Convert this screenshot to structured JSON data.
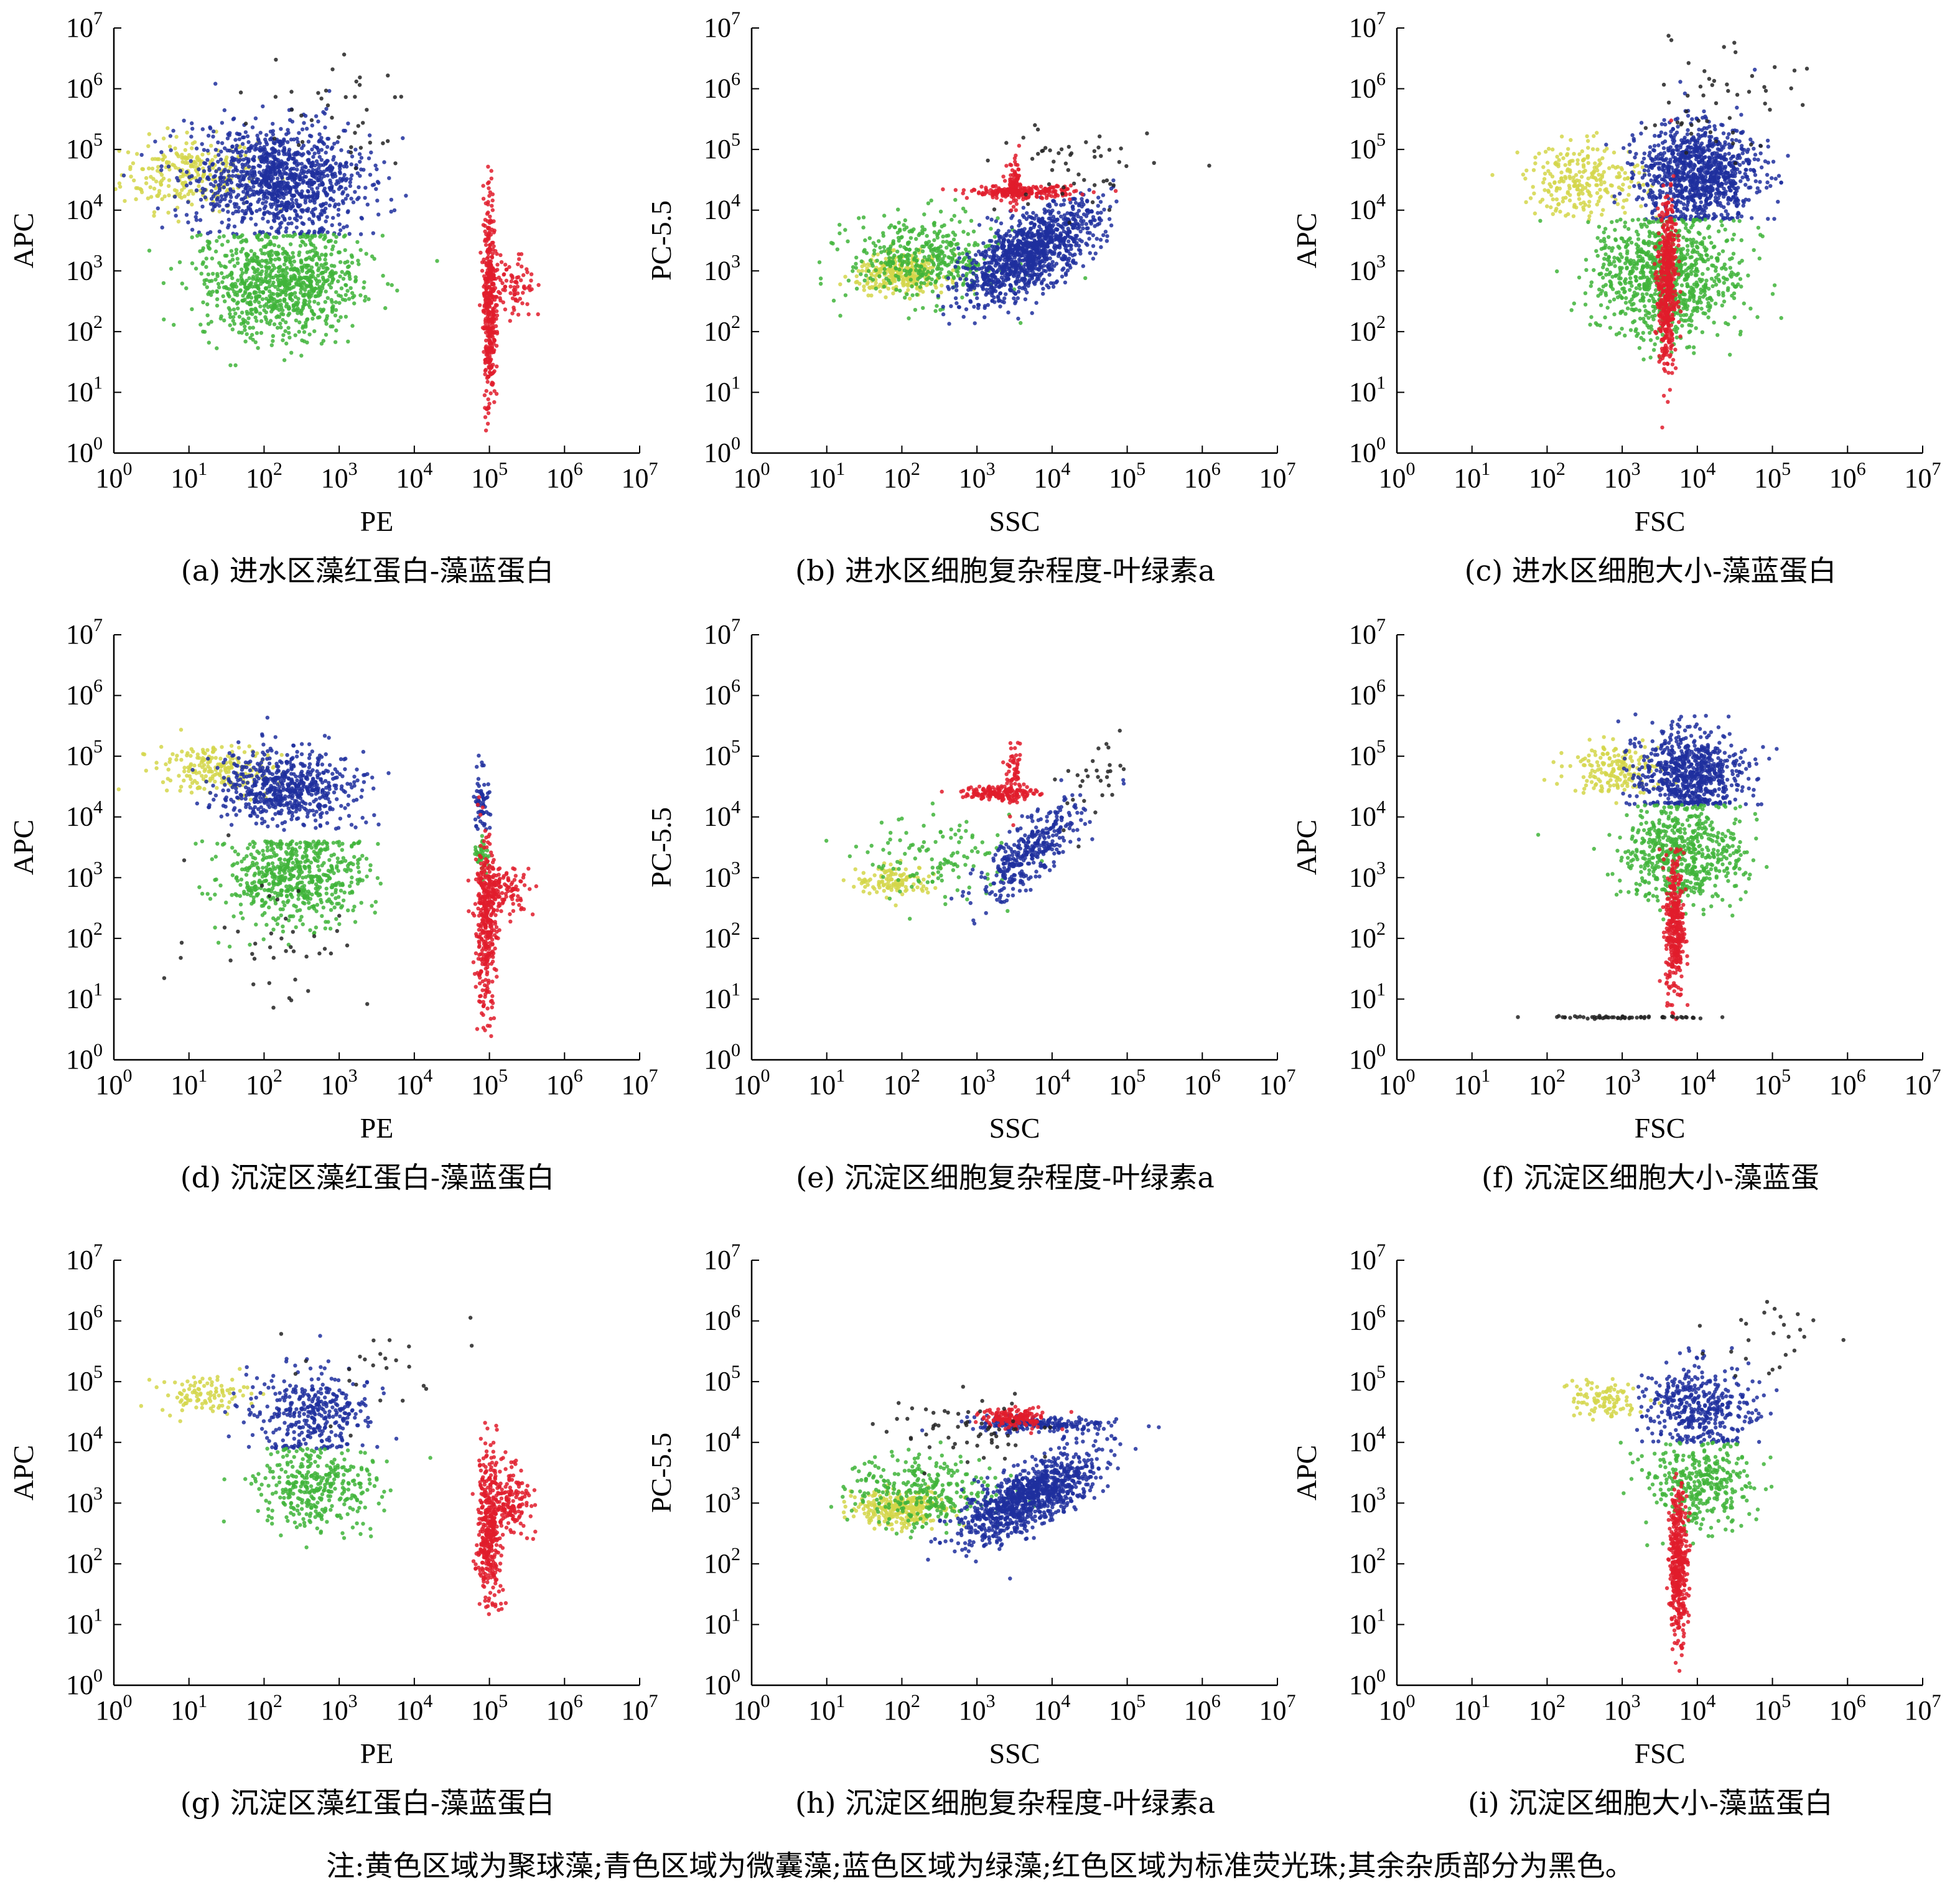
{
  "figure": {
    "note": "注:黄色区域为聚球藻;青色区域为微囊藻;蓝色区域为绿藻;红色区域为标准荧光珠;其余杂质部分为黑色。",
    "colors": {
      "yellow": "#d4d64a",
      "green": "#3fb43a",
      "blue": "#1f2f9e",
      "red": "#e01c2c",
      "black": "#222222"
    }
  },
  "chart_data": [
    {
      "type": "scatter",
      "caption": "(a) 进水区藻红蛋白-藻蓝蛋白",
      "xlabel": "PE",
      "ylabel": "APC",
      "xscale": "log",
      "yscale": "log",
      "xlim": [
        1,
        10000000
      ],
      "ylim": [
        1,
        10000000
      ],
      "tick_labels": [
        "10^0",
        "10^1",
        "10^2",
        "10^3",
        "10^4",
        "10^5",
        "10^6",
        "10^7"
      ],
      "clusters": [
        {
          "color": "yellow",
          "cx": 1.0,
          "cy": 4.6,
          "sx": 0.45,
          "sy": 0.3,
          "n": 250
        },
        {
          "color": "blue",
          "cx": 2.2,
          "cy": 4.5,
          "sx": 0.55,
          "sy": 0.45,
          "n": 1100,
          "ymin": 3.6
        },
        {
          "color": "green",
          "cx": 2.2,
          "cy": 2.8,
          "sx": 0.55,
          "sy": 0.45,
          "n": 900,
          "ymax": 3.6
        },
        {
          "color": "black",
          "cx": 2.8,
          "cy": 5.6,
          "sx": 0.6,
          "sy": 0.5,
          "n": 40
        },
        {
          "color": "red",
          "cx": 5.0,
          "cy": 2.5,
          "sx": 0.04,
          "sy": 0.9,
          "n": 380
        },
        {
          "color": "red",
          "cx": 5.3,
          "cy": 2.7,
          "sx": 0.15,
          "sy": 0.3,
          "n": 90
        }
      ]
    },
    {
      "type": "scatter",
      "caption": "(b) 进水区细胞复杂程度-叶绿素a",
      "xlabel": "SSC",
      "ylabel": "PC-5.5",
      "xscale": "log",
      "yscale": "log",
      "xlim": [
        1,
        10000000
      ],
      "ylim": [
        1,
        10000000
      ],
      "tick_labels": [
        "10^0",
        "10^1",
        "10^2",
        "10^3",
        "10^4",
        "10^5",
        "10^6",
        "10^7"
      ],
      "clusters": [
        {
          "color": "yellow",
          "cx": 2.0,
          "cy": 2.95,
          "sx": 0.3,
          "sy": 0.15,
          "n": 300
        },
        {
          "color": "green",
          "cx": 2.3,
          "cy": 3.2,
          "sx": 0.5,
          "sy": 0.35,
          "n": 400
        },
        {
          "color": "blue",
          "cx": 3.7,
          "cy": 3.3,
          "sx": 0.45,
          "sy": 0.3,
          "n": 1100,
          "slope": 0.6
        },
        {
          "color": "red",
          "cx": 3.6,
          "cy": 4.3,
          "sx": 0.35,
          "sy": 0.05,
          "n": 200
        },
        {
          "color": "red",
          "cx": 3.5,
          "cy": 4.4,
          "sx": 0.05,
          "sy": 0.2,
          "n": 80
        },
        {
          "color": "black",
          "cx": 4.3,
          "cy": 4.7,
          "sx": 0.5,
          "sy": 0.4,
          "n": 50
        }
      ]
    },
    {
      "type": "scatter",
      "caption": "(c) 进水区细胞大小-藻蓝蛋白",
      "xlabel": "FSC",
      "ylabel": "APC",
      "xscale": "log",
      "yscale": "log",
      "xlim": [
        1,
        10000000
      ],
      "ylim": [
        1,
        10000000
      ],
      "tick_labels": [
        "10^0",
        "10^1",
        "10^2",
        "10^3",
        "10^4",
        "10^5",
        "10^6",
        "10^7"
      ],
      "clusters": [
        {
          "color": "yellow",
          "cx": 2.5,
          "cy": 4.5,
          "sx": 0.4,
          "sy": 0.3,
          "n": 250
        },
        {
          "color": "blue",
          "cx": 4.0,
          "cy": 4.6,
          "sx": 0.4,
          "sy": 0.4,
          "n": 1000,
          "ymin": 3.85
        },
        {
          "color": "green",
          "cx": 3.6,
          "cy": 2.9,
          "sx": 0.5,
          "sy": 0.5,
          "n": 900,
          "ymax": 3.85
        },
        {
          "color": "red",
          "cx": 3.6,
          "cy": 2.8,
          "sx": 0.06,
          "sy": 0.7,
          "n": 500
        },
        {
          "color": "black",
          "cx": 4.3,
          "cy": 5.7,
          "sx": 0.5,
          "sy": 0.5,
          "n": 50
        }
      ]
    },
    {
      "type": "scatter",
      "caption": "(d) 沉淀区藻红蛋白-藻蓝蛋白",
      "xlabel": "PE",
      "ylabel": "APC",
      "xscale": "log",
      "yscale": "log",
      "xlim": [
        1,
        10000000
      ],
      "ylim": [
        1,
        10000000
      ],
      "tick_labels": [
        "10^0",
        "10^1",
        "10^2",
        "10^3",
        "10^4",
        "10^5",
        "10^6",
        "10^7"
      ],
      "clusters": [
        {
          "color": "yellow",
          "cx": 1.3,
          "cy": 4.8,
          "sx": 0.4,
          "sy": 0.2,
          "n": 200
        },
        {
          "color": "blue",
          "cx": 2.3,
          "cy": 4.5,
          "sx": 0.45,
          "sy": 0.3,
          "n": 600,
          "ymin": 3.6
        },
        {
          "color": "green",
          "cx": 2.4,
          "cy": 3.0,
          "sx": 0.45,
          "sy": 0.4,
          "n": 600,
          "ymax": 3.6
        },
        {
          "color": "blue",
          "cx": 4.9,
          "cy": 4.3,
          "sx": 0.05,
          "sy": 0.3,
          "n": 60
        },
        {
          "color": "green",
          "cx": 4.9,
          "cy": 3.4,
          "sx": 0.05,
          "sy": 0.15,
          "n": 40
        },
        {
          "color": "red",
          "cx": 4.95,
          "cy": 2.2,
          "sx": 0.07,
          "sy": 0.7,
          "n": 350
        },
        {
          "color": "red",
          "cx": 5.2,
          "cy": 2.8,
          "sx": 0.2,
          "sy": 0.2,
          "n": 120
        },
        {
          "color": "black",
          "cx": 2.2,
          "cy": 2.0,
          "sx": 0.6,
          "sy": 0.6,
          "n": 40
        }
      ]
    },
    {
      "type": "scatter",
      "caption": "(e) 沉淀区细胞复杂程度-叶绿素a",
      "xlabel": "SSC",
      "ylabel": "PC-5.5",
      "xscale": "log",
      "yscale": "log",
      "xlim": [
        1,
        10000000
      ],
      "ylim": [
        1,
        10000000
      ],
      "tick_labels": [
        "10^0",
        "10^1",
        "10^2",
        "10^3",
        "10^4",
        "10^5",
        "10^6",
        "10^7"
      ],
      "clusters": [
        {
          "color": "yellow",
          "cx": 1.9,
          "cy": 2.95,
          "sx": 0.25,
          "sy": 0.12,
          "n": 120
        },
        {
          "color": "green",
          "cx": 2.5,
          "cy": 3.3,
          "sx": 0.5,
          "sy": 0.35,
          "n": 120
        },
        {
          "color": "blue",
          "cx": 3.7,
          "cy": 3.4,
          "sx": 0.35,
          "sy": 0.25,
          "n": 350,
          "slope": 0.9
        },
        {
          "color": "red",
          "cx": 3.3,
          "cy": 4.4,
          "sx": 0.25,
          "sy": 0.06,
          "n": 150
        },
        {
          "color": "red",
          "cx": 3.5,
          "cy": 4.6,
          "sx": 0.05,
          "sy": 0.25,
          "n": 70
        },
        {
          "color": "black",
          "cx": 4.6,
          "cy": 4.6,
          "sx": 0.3,
          "sy": 0.35,
          "n": 30,
          "slope": 1.0
        }
      ]
    },
    {
      "type": "scatter",
      "caption": "(f) 沉淀区细胞大小-藻蓝蛋",
      "xlabel": "FSC",
      "ylabel": "APC",
      "xscale": "log",
      "yscale": "log",
      "xlim": [
        1,
        10000000
      ],
      "ylim": [
        1,
        10000000
      ],
      "tick_labels": [
        "10^0",
        "10^1",
        "10^2",
        "10^3",
        "10^4",
        "10^5",
        "10^6",
        "10^7"
      ],
      "clusters": [
        {
          "color": "yellow",
          "cx": 2.9,
          "cy": 4.8,
          "sx": 0.3,
          "sy": 0.2,
          "n": 180
        },
        {
          "color": "blue",
          "cx": 3.9,
          "cy": 4.7,
          "sx": 0.35,
          "sy": 0.35,
          "n": 700,
          "ymin": 4.2
        },
        {
          "color": "green",
          "cx": 3.8,
          "cy": 3.4,
          "sx": 0.4,
          "sy": 0.4,
          "n": 600,
          "ymax": 4.2
        },
        {
          "color": "red",
          "cx": 3.7,
          "cy": 2.2,
          "sx": 0.06,
          "sy": 0.6,
          "n": 350
        },
        {
          "color": "black",
          "cx": 3.0,
          "cy": 0.7,
          "sx": 0.6,
          "sy": 0.01,
          "n": 60
        }
      ]
    },
    {
      "type": "scatter",
      "caption": "(g) 沉淀区藻红蛋白-藻蓝蛋白",
      "xlabel": "PE",
      "ylabel": "APC",
      "xscale": "log",
      "yscale": "log",
      "xlim": [
        1,
        10000000
      ],
      "ylim": [
        1,
        10000000
      ],
      "tick_labels": [
        "10^0",
        "10^1",
        "10^2",
        "10^3",
        "10^4",
        "10^5",
        "10^6",
        "10^7"
      ],
      "clusters": [
        {
          "color": "yellow",
          "cx": 1.2,
          "cy": 4.8,
          "sx": 0.3,
          "sy": 0.15,
          "n": 100
        },
        {
          "color": "blue",
          "cx": 2.6,
          "cy": 4.5,
          "sx": 0.4,
          "sy": 0.35,
          "n": 350,
          "ymin": 3.9
        },
        {
          "color": "green",
          "cx": 2.7,
          "cy": 3.3,
          "sx": 0.4,
          "sy": 0.35,
          "n": 350,
          "ymax": 3.9
        },
        {
          "color": "red",
          "cx": 5.0,
          "cy": 2.6,
          "sx": 0.08,
          "sy": 0.6,
          "n": 380
        },
        {
          "color": "red",
          "cx": 5.3,
          "cy": 3.0,
          "sx": 0.12,
          "sy": 0.3,
          "n": 140
        },
        {
          "color": "black",
          "cx": 3.5,
          "cy": 5.2,
          "sx": 0.5,
          "sy": 0.4,
          "n": 25
        }
      ]
    },
    {
      "type": "scatter",
      "caption": "(h) 沉淀区细胞复杂程度-叶绿素a",
      "xlabel": "SSC",
      "ylabel": "PC-5.5",
      "xscale": "log",
      "yscale": "log",
      "xlim": [
        1,
        10000000
      ],
      "ylim": [
        1,
        10000000
      ],
      "tick_labels": [
        "10^0",
        "10^1",
        "10^2",
        "10^3",
        "10^4",
        "10^5",
        "10^6",
        "10^7"
      ],
      "clusters": [
        {
          "color": "yellow",
          "cx": 2.0,
          "cy": 2.9,
          "sx": 0.3,
          "sy": 0.15,
          "n": 300
        },
        {
          "color": "green",
          "cx": 2.3,
          "cy": 3.2,
          "sx": 0.5,
          "sy": 0.3,
          "n": 300
        },
        {
          "color": "blue",
          "cx": 3.7,
          "cy": 3.1,
          "sx": 0.45,
          "sy": 0.25,
          "n": 1000,
          "slope": 0.55
        },
        {
          "color": "blue",
          "cx": 3.8,
          "cy": 4.3,
          "sx": 0.45,
          "sy": 0.06,
          "n": 200
        },
        {
          "color": "red",
          "cx": 3.5,
          "cy": 4.4,
          "sx": 0.2,
          "sy": 0.08,
          "n": 160
        },
        {
          "color": "black",
          "cx": 3.0,
          "cy": 4.2,
          "sx": 0.6,
          "sy": 0.3,
          "n": 60
        }
      ]
    },
    {
      "type": "scatter",
      "caption": "(i) 沉淀区细胞大小-藻蓝蛋白",
      "xlabel": "FSC",
      "ylabel": "APC",
      "xscale": "log",
      "yscale": "log",
      "xlim": [
        1,
        10000000
      ],
      "ylim": [
        1,
        10000000
      ],
      "tick_labels": [
        "10^0",
        "10^1",
        "10^2",
        "10^3",
        "10^4",
        "10^5",
        "10^6",
        "10^7"
      ],
      "clusters": [
        {
          "color": "yellow",
          "cx": 2.8,
          "cy": 4.7,
          "sx": 0.25,
          "sy": 0.15,
          "n": 100
        },
        {
          "color": "blue",
          "cx": 4.0,
          "cy": 4.6,
          "sx": 0.35,
          "sy": 0.35,
          "n": 400,
          "ymin": 4.0
        },
        {
          "color": "green",
          "cx": 4.0,
          "cy": 3.3,
          "sx": 0.35,
          "sy": 0.35,
          "n": 350,
          "ymax": 4.0
        },
        {
          "color": "red",
          "cx": 3.75,
          "cy": 2.0,
          "sx": 0.06,
          "sy": 0.6,
          "n": 400
        },
        {
          "color": "black",
          "cx": 5.0,
          "cy": 5.8,
          "sx": 0.4,
          "sy": 0.4,
          "n": 25
        }
      ]
    }
  ]
}
